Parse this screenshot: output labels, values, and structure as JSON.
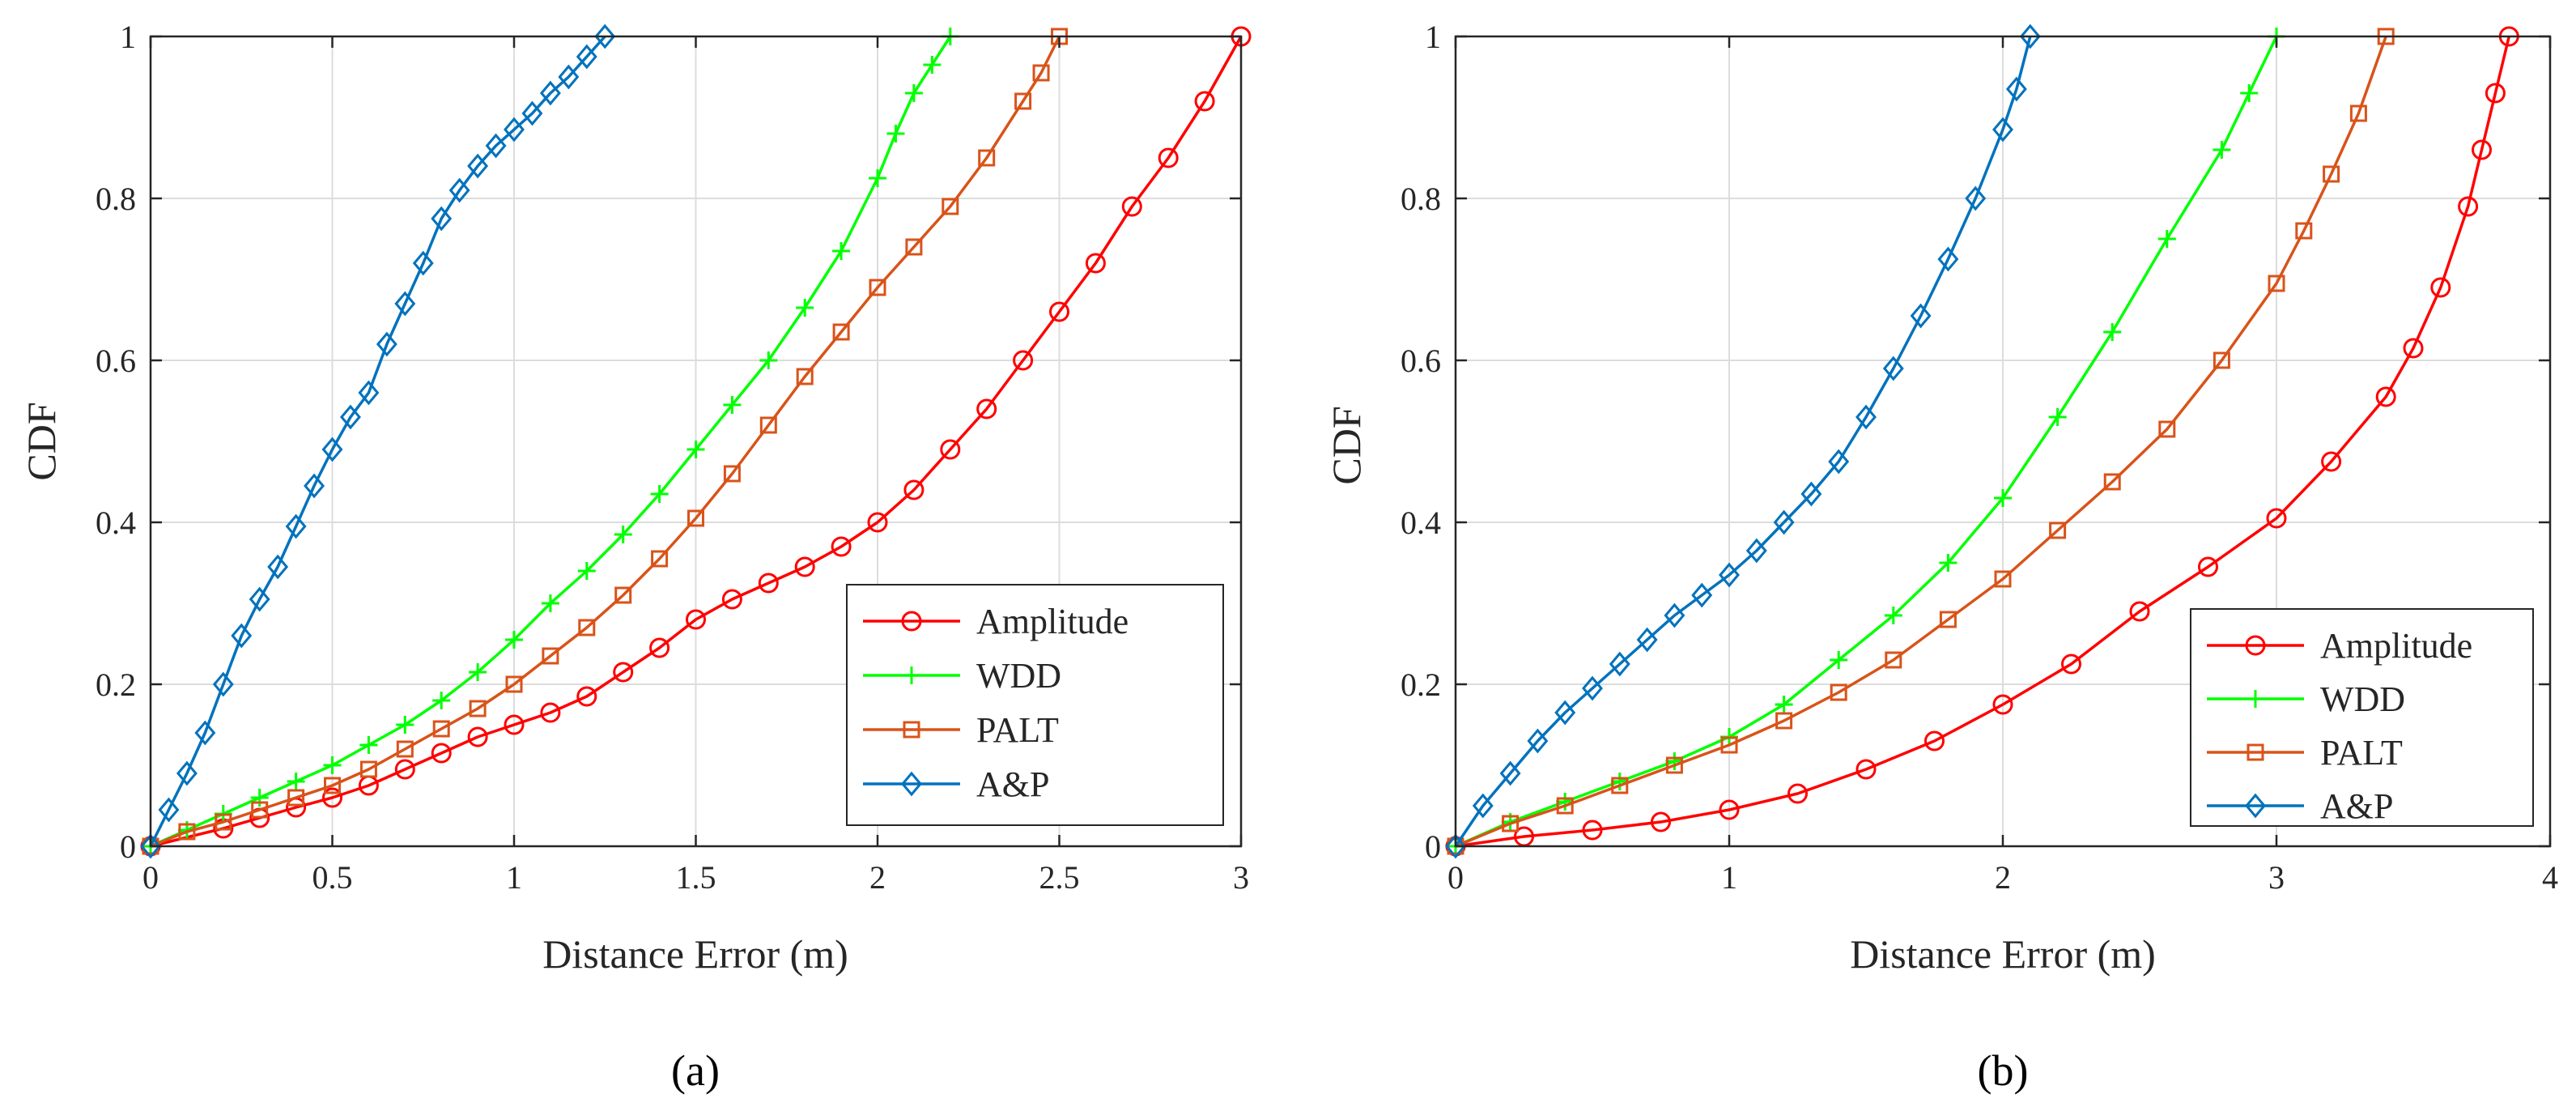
{
  "chart_data": [
    {
      "type": "line",
      "panel": "a",
      "caption": "(a)",
      "xlabel": "Distance Error (m)",
      "ylabel": "CDF",
      "xlim": [
        0,
        3
      ],
      "ylim": [
        0,
        1
      ],
      "xticks": [
        0,
        0.5,
        1,
        1.5,
        2,
        2.5,
        3
      ],
      "xtick_labels": [
        "0",
        "0.5",
        "1",
        "1.5",
        "2",
        "2.5",
        "3"
      ],
      "yticks": [
        0,
        0.2,
        0.4,
        0.6,
        0.8,
        1
      ],
      "ytick_labels": [
        "0",
        "0.2",
        "0.4",
        "0.6",
        "0.8",
        "1"
      ],
      "grid": true,
      "legend_position": "bottom-right",
      "series": [
        {
          "name": "Amplitude",
          "color": "#ff0000",
          "marker": "circle",
          "x": [
            0,
            0.2,
            0.3,
            0.4,
            0.5,
            0.6,
            0.7,
            0.8,
            0.9,
            1.0,
            1.1,
            1.2,
            1.3,
            1.4,
            1.5,
            1.6,
            1.7,
            1.8,
            1.9,
            2.0,
            2.1,
            2.2,
            2.3,
            2.4,
            2.5,
            2.6,
            2.7,
            2.8,
            2.9,
            3.0
          ],
          "y": [
            0,
            0.022,
            0.035,
            0.048,
            0.06,
            0.075,
            0.095,
            0.115,
            0.135,
            0.15,
            0.165,
            0.185,
            0.215,
            0.245,
            0.28,
            0.305,
            0.325,
            0.345,
            0.37,
            0.4,
            0.44,
            0.49,
            0.54,
            0.6,
            0.66,
            0.72,
            0.79,
            0.85,
            0.92,
            1.0
          ]
        },
        {
          "name": "WDD",
          "color": "#00ff00",
          "marker": "plus",
          "x": [
            0,
            0.1,
            0.2,
            0.3,
            0.4,
            0.5,
            0.6,
            0.7,
            0.8,
            0.9,
            1.0,
            1.1,
            1.2,
            1.3,
            1.4,
            1.5,
            1.6,
            1.7,
            1.8,
            1.9,
            2.0,
            2.05,
            2.1,
            2.15,
            2.2
          ],
          "y": [
            0,
            0.02,
            0.04,
            0.06,
            0.08,
            0.1,
            0.125,
            0.15,
            0.18,
            0.215,
            0.255,
            0.3,
            0.34,
            0.385,
            0.435,
            0.49,
            0.545,
            0.6,
            0.665,
            0.735,
            0.825,
            0.88,
            0.93,
            0.965,
            1.0
          ]
        },
        {
          "name": "PALT",
          "color": "#d95319",
          "marker": "square",
          "x": [
            0,
            0.1,
            0.2,
            0.3,
            0.4,
            0.5,
            0.6,
            0.7,
            0.8,
            0.9,
            1.0,
            1.1,
            1.2,
            1.3,
            1.4,
            1.5,
            1.6,
            1.7,
            1.8,
            1.9,
            2.0,
            2.1,
            2.2,
            2.3,
            2.4,
            2.45,
            2.5
          ],
          "y": [
            0,
            0.018,
            0.03,
            0.045,
            0.06,
            0.075,
            0.095,
            0.12,
            0.145,
            0.17,
            0.2,
            0.235,
            0.27,
            0.31,
            0.355,
            0.405,
            0.46,
            0.52,
            0.58,
            0.635,
            0.69,
            0.74,
            0.79,
            0.85,
            0.92,
            0.955,
            1.0
          ]
        },
        {
          "name": "A&P",
          "color": "#0072bd",
          "marker": "diamond",
          "x": [
            0,
            0.05,
            0.1,
            0.15,
            0.2,
            0.25,
            0.3,
            0.35,
            0.4,
            0.45,
            0.5,
            0.55,
            0.6,
            0.65,
            0.7,
            0.75,
            0.8,
            0.85,
            0.9,
            0.95,
            1.0,
            1.05,
            1.1,
            1.15,
            1.2,
            1.25
          ],
          "y": [
            0,
            0.045,
            0.09,
            0.14,
            0.2,
            0.26,
            0.305,
            0.345,
            0.395,
            0.445,
            0.49,
            0.53,
            0.56,
            0.62,
            0.67,
            0.72,
            0.775,
            0.81,
            0.84,
            0.865,
            0.885,
            0.905,
            0.93,
            0.95,
            0.975,
            1.0
          ]
        }
      ]
    },
    {
      "type": "line",
      "panel": "b",
      "caption": "(b)",
      "xlabel": "Distance Error (m)",
      "ylabel": "CDF",
      "xlim": [
        0,
        4
      ],
      "ylim": [
        0,
        1
      ],
      "xticks": [
        0,
        1,
        2,
        3,
        4
      ],
      "xtick_labels": [
        "0",
        "1",
        "2",
        "3",
        "4"
      ],
      "yticks": [
        0,
        0.2,
        0.4,
        0.6,
        0.8,
        1
      ],
      "ytick_labels": [
        "0",
        "0.2",
        "0.4",
        "0.6",
        "0.8",
        "1"
      ],
      "grid": true,
      "legend_position": "bottom-right",
      "series": [
        {
          "name": "Amplitude",
          "color": "#ff0000",
          "marker": "circle",
          "x": [
            0,
            0.25,
            0.5,
            0.75,
            1.0,
            1.25,
            1.5,
            1.75,
            2.0,
            2.25,
            2.5,
            2.75,
            3.0,
            3.2,
            3.4,
            3.5,
            3.6,
            3.7,
            3.75,
            3.8,
            3.85
          ],
          "y": [
            0,
            0.012,
            0.02,
            0.03,
            0.045,
            0.065,
            0.095,
            0.13,
            0.175,
            0.225,
            0.29,
            0.345,
            0.405,
            0.475,
            0.555,
            0.615,
            0.69,
            0.79,
            0.86,
            0.93,
            1.0
          ]
        },
        {
          "name": "WDD",
          "color": "#00ff00",
          "marker": "plus",
          "x": [
            0,
            0.2,
            0.4,
            0.6,
            0.8,
            1.0,
            1.2,
            1.4,
            1.6,
            1.8,
            2.0,
            2.2,
            2.4,
            2.6,
            2.8,
            2.9,
            3.0
          ],
          "y": [
            0,
            0.03,
            0.055,
            0.08,
            0.105,
            0.135,
            0.175,
            0.23,
            0.285,
            0.35,
            0.43,
            0.53,
            0.635,
            0.75,
            0.86,
            0.93,
            1.0
          ]
        },
        {
          "name": "PALT",
          "color": "#d95319",
          "marker": "square",
          "x": [
            0,
            0.2,
            0.4,
            0.6,
            0.8,
            1.0,
            1.2,
            1.4,
            1.6,
            1.8,
            2.0,
            2.2,
            2.4,
            2.6,
            2.8,
            3.0,
            3.1,
            3.2,
            3.3,
            3.4
          ],
          "y": [
            0,
            0.028,
            0.05,
            0.075,
            0.1,
            0.125,
            0.155,
            0.19,
            0.23,
            0.28,
            0.33,
            0.39,
            0.45,
            0.515,
            0.6,
            0.695,
            0.76,
            0.83,
            0.905,
            1.0
          ]
        },
        {
          "name": "A&P",
          "color": "#0072bd",
          "marker": "diamond",
          "x": [
            0,
            0.1,
            0.2,
            0.3,
            0.4,
            0.5,
            0.6,
            0.7,
            0.8,
            0.9,
            1.0,
            1.1,
            1.2,
            1.3,
            1.4,
            1.5,
            1.6,
            1.7,
            1.8,
            1.9,
            2.0,
            2.05,
            2.1
          ],
          "y": [
            0,
            0.05,
            0.09,
            0.13,
            0.165,
            0.195,
            0.225,
            0.255,
            0.285,
            0.31,
            0.335,
            0.365,
            0.4,
            0.435,
            0.475,
            0.53,
            0.59,
            0.655,
            0.725,
            0.8,
            0.885,
            0.935,
            1.0
          ]
        }
      ]
    }
  ]
}
